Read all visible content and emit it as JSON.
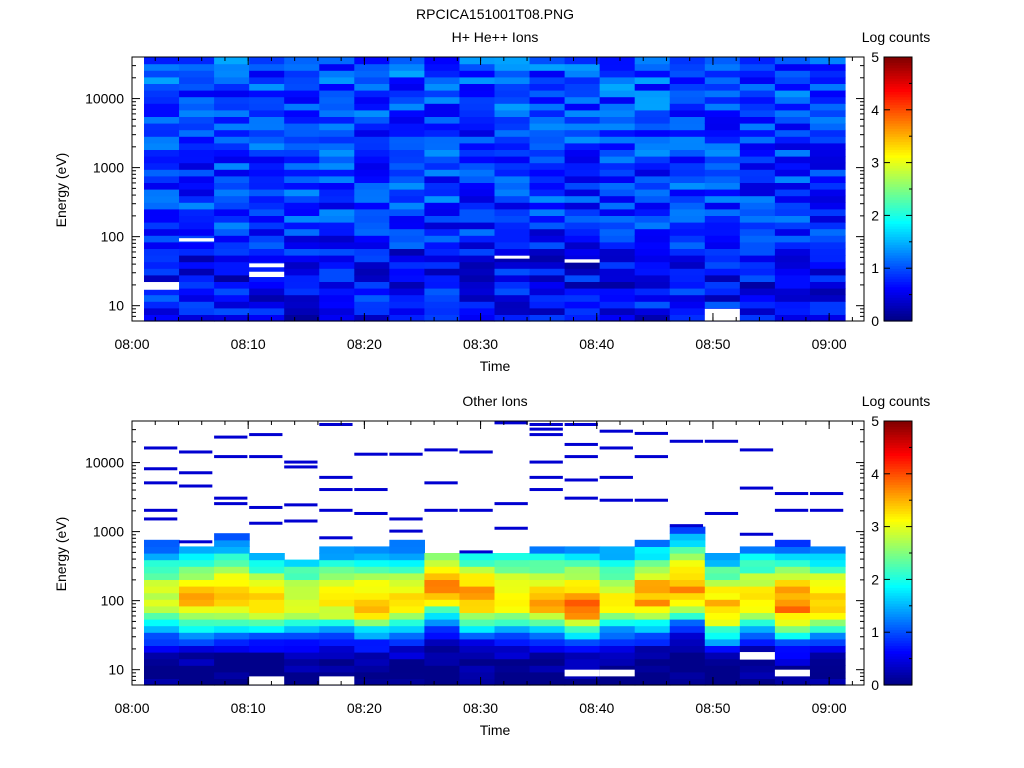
{
  "figure": {
    "title": "RPCICA151001T08.PNG"
  },
  "chart_data": [
    {
      "type": "heatmap",
      "title": "H+ He++ Ions",
      "xlabel": "Time",
      "ylabel": "Energy (eV)",
      "y_scale": "log",
      "x_range": [
        "08:00",
        "09:03"
      ],
      "y_range": [
        6,
        40000
      ],
      "x_ticks": [
        "08:00",
        "08:10",
        "08:20",
        "08:30",
        "08:40",
        "08:50",
        "09:00"
      ],
      "y_ticks": [
        "10",
        "100",
        "1000",
        "10000"
      ],
      "colorbar": {
        "label": "Log counts",
        "range": [
          0,
          5
        ],
        "ticks": [
          "0",
          "1",
          "2",
          "3",
          "4",
          "5"
        ]
      },
      "time_bins": [
        "08:01",
        "08:04",
        "08:07",
        "08:10",
        "08:14",
        "08:17",
        "08:20",
        "08:23",
        "08:26",
        "08:29",
        "08:33",
        "08:36",
        "08:39",
        "08:42",
        "08:45",
        "08:48",
        "08:52",
        "08:55",
        "08:58",
        "09:01"
      ],
      "energy_profile": {
        "description_levels": "approximate log-count level vs energy",
        "energy_eV": [
          7,
          10,
          20,
          50,
          100,
          300,
          1000,
          3000,
          10000,
          35000
        ],
        "log_counts": [
          0.5,
          0.7,
          0.6,
          0.6,
          0.8,
          0.9,
          0.9,
          0.9,
          1.0,
          1.0
        ]
      },
      "empty_cells": [
        {
          "time": "08:01",
          "energy_from": 17,
          "energy_to": 22
        },
        {
          "time": "08:04",
          "energy_from": 85,
          "energy_to": 95
        },
        {
          "time": "08:10",
          "energy_from": 26,
          "energy_to": 31
        },
        {
          "time": "08:10",
          "energy_from": 36,
          "energy_to": 41
        },
        {
          "time": "08:33",
          "energy_from": 48,
          "energy_to": 53
        },
        {
          "time": "08:39",
          "energy_from": 42,
          "energy_to": 47
        },
        {
          "time": "08:52",
          "energy_from": 6,
          "energy_to": 9
        }
      ]
    },
    {
      "type": "heatmap",
      "title": "Other Ions",
      "xlabel": "Time",
      "ylabel": "Energy (eV)",
      "y_scale": "log",
      "x_range": [
        "08:00",
        "09:03"
      ],
      "y_range": [
        6,
        40000
      ],
      "x_ticks": [
        "08:00",
        "08:10",
        "08:20",
        "08:30",
        "08:40",
        "08:50",
        "09:00"
      ],
      "y_ticks": [
        "10",
        "100",
        "1000",
        "10000"
      ],
      "colorbar": {
        "label": "Log counts",
        "range": [
          0,
          5
        ],
        "ticks": [
          "0",
          "1",
          "2",
          "3",
          "4",
          "5"
        ]
      },
      "time_bins": [
        "08:01",
        "08:04",
        "08:07",
        "08:10",
        "08:14",
        "08:17",
        "08:20",
        "08:23",
        "08:26",
        "08:29",
        "08:33",
        "08:36",
        "08:39",
        "08:42",
        "08:45",
        "08:48",
        "08:52",
        "08:55",
        "08:58",
        "09:01"
      ],
      "peak_energy_eV": [
        100,
        100,
        110,
        100,
        100,
        100,
        90,
        100,
        160,
        110,
        110,
        100,
        85,
        100,
        110,
        150,
        80,
        100,
        85,
        90
      ],
      "peak_log_counts": [
        3.0,
        3.4,
        3.6,
        3.2,
        3.0,
        3.2,
        3.4,
        3.2,
        3.7,
        3.6,
        3.3,
        3.5,
        3.8,
        3.1,
        3.6,
        3.6,
        3.5,
        3.3,
        3.7,
        3.5
      ],
      "upper_edge_eV": [
        700,
        650,
        1000,
        450,
        420,
        650,
        620,
        700,
        500,
        450,
        500,
        600,
        550,
        620,
        800,
        1200,
        450,
        600,
        700,
        550
      ],
      "sparse_high_energy_traces": [
        {
          "time": "08:01",
          "energy_eV": [
            16000,
            8000,
            5000,
            2000,
            1500
          ]
        },
        {
          "time": "08:04",
          "energy_eV": [
            14000,
            7000,
            4500,
            700
          ]
        },
        {
          "time": "08:07",
          "energy_eV": [
            23000,
            12000,
            3000,
            2500
          ]
        },
        {
          "time": "08:10",
          "energy_eV": [
            25000,
            12000,
            2200,
            1300
          ]
        },
        {
          "time": "08:14",
          "energy_eV": [
            10000,
            8500,
            2400,
            1400
          ]
        },
        {
          "time": "08:17",
          "energy_eV": [
            35000,
            6000,
            4000,
            2000,
            800
          ]
        },
        {
          "time": "08:20",
          "energy_eV": [
            13000,
            4000,
            1800
          ]
        },
        {
          "time": "08:23",
          "energy_eV": [
            13000,
            1500,
            1000
          ]
        },
        {
          "time": "08:26",
          "energy_eV": [
            15000,
            5000,
            2000
          ]
        },
        {
          "time": "08:29",
          "energy_eV": [
            14000,
            2000,
            500
          ]
        },
        {
          "time": "08:33",
          "energy_eV": [
            37000,
            2500,
            1100
          ]
        },
        {
          "time": "08:36",
          "energy_eV": [
            35000,
            30000,
            25000,
            10000,
            6000,
            4000
          ]
        },
        {
          "time": "08:39",
          "energy_eV": [
            35000,
            18000,
            12000,
            5500,
            3000
          ]
        },
        {
          "time": "08:42",
          "energy_eV": [
            28000,
            16000,
            6000,
            2800
          ]
        },
        {
          "time": "08:45",
          "energy_eV": [
            26000,
            12000,
            2800
          ]
        },
        {
          "time": "08:48",
          "energy_eV": [
            20000,
            1200
          ]
        },
        {
          "time": "08:52",
          "energy_eV": [
            20000,
            1800
          ]
        },
        {
          "time": "08:55",
          "energy_eV": [
            15000,
            4200,
            900
          ]
        },
        {
          "time": "08:58",
          "energy_eV": [
            3500,
            2000
          ]
        },
        {
          "time": "09:01",
          "energy_eV": [
            3500,
            2000
          ]
        }
      ],
      "empty_cells": [
        {
          "time": "08:10",
          "energy_from": 6,
          "energy_to": 8
        },
        {
          "time": "08:17",
          "energy_from": 6,
          "energy_to": 8
        },
        {
          "time": "08:39",
          "energy_from": 8,
          "energy_to": 10
        },
        {
          "time": "08:42",
          "energy_from": 8,
          "energy_to": 10
        },
        {
          "time": "08:55",
          "energy_from": 14,
          "energy_to": 18
        },
        {
          "time": "08:58",
          "energy_from": 8,
          "energy_to": 10
        }
      ]
    }
  ]
}
